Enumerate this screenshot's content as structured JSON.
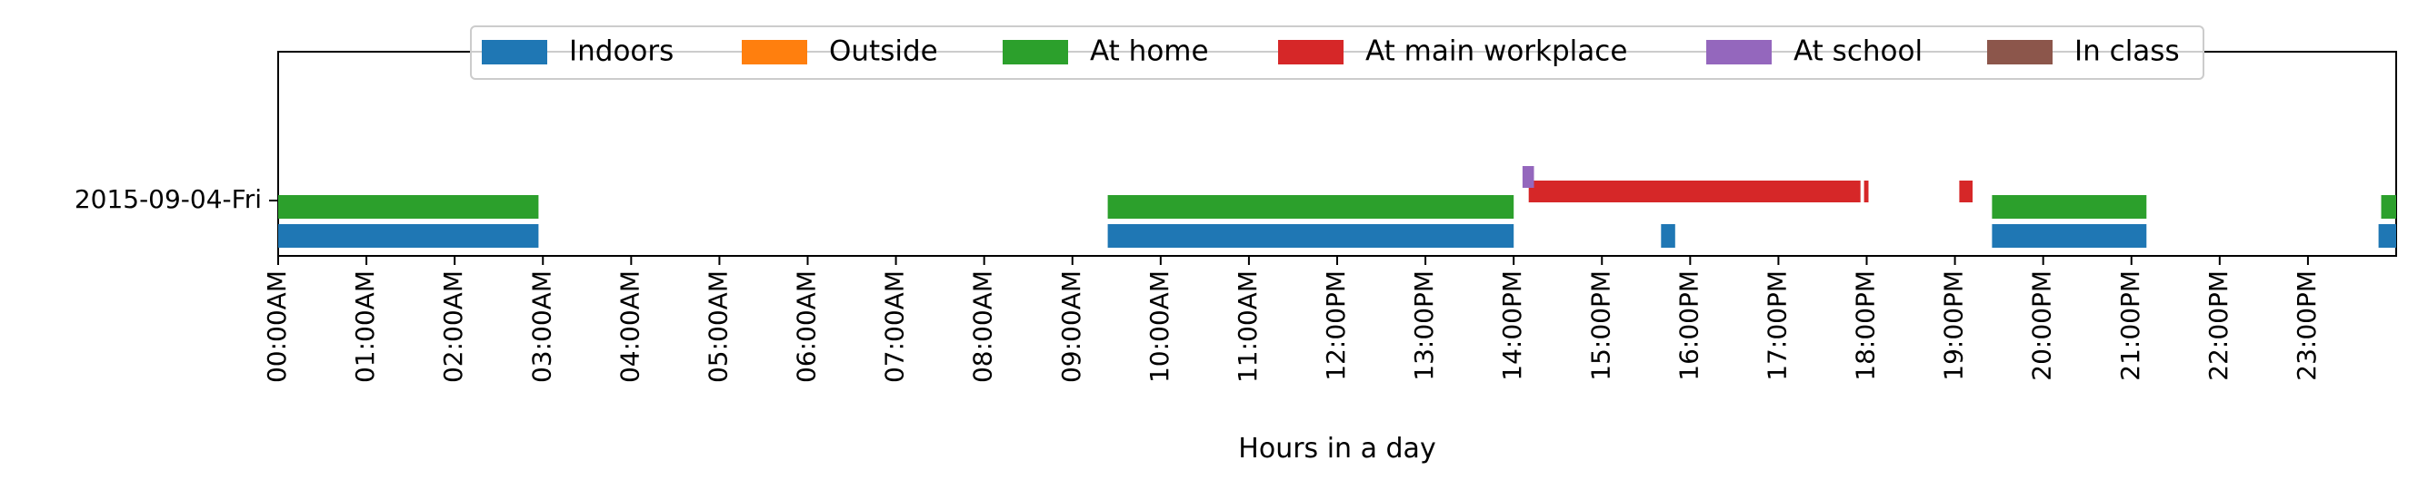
{
  "chart_data": {
    "type": "timeline",
    "xlabel": "Hours in a day",
    "xlim": [
      0,
      24
    ],
    "x_ticks": [
      "00:00AM",
      "01:00AM",
      "02:00AM",
      "03:00AM",
      "04:00AM",
      "05:00AM",
      "06:00AM",
      "07:00AM",
      "08:00AM",
      "09:00AM",
      "10:00AM",
      "11:00AM",
      "12:00PM",
      "13:00PM",
      "14:00PM",
      "15:00PM",
      "16:00PM",
      "17:00PM",
      "18:00PM",
      "19:00PM",
      "20:00PM",
      "21:00PM",
      "22:00PM",
      "23:00PM"
    ],
    "y_label": "2015-09-04-Fri",
    "legend_position": "top-center",
    "series": [
      {
        "name": "Indoors",
        "color": "#1f77b4",
        "segments": [
          [
            0.0,
            2.95
          ],
          [
            9.4,
            14.0
          ],
          [
            15.67,
            15.83
          ],
          [
            19.42,
            21.17
          ],
          [
            23.8,
            24.0
          ]
        ]
      },
      {
        "name": "Outside",
        "color": "#ff7f0e",
        "segments": []
      },
      {
        "name": "At home",
        "color": "#2ca02c",
        "segments": [
          [
            0.0,
            2.95
          ],
          [
            9.4,
            14.0
          ],
          [
            19.42,
            21.17
          ],
          [
            23.83,
            24.0
          ]
        ]
      },
      {
        "name": "At main workplace",
        "color": "#d62728",
        "segments": [
          [
            14.17,
            17.93
          ],
          [
            17.97,
            18.02
          ],
          [
            19.05,
            19.2
          ]
        ]
      },
      {
        "name": "At school",
        "color": "#9467bd",
        "segments": [
          [
            14.1,
            14.23
          ]
        ]
      },
      {
        "name": "In class",
        "color": "#8c564b",
        "segments": []
      }
    ]
  }
}
